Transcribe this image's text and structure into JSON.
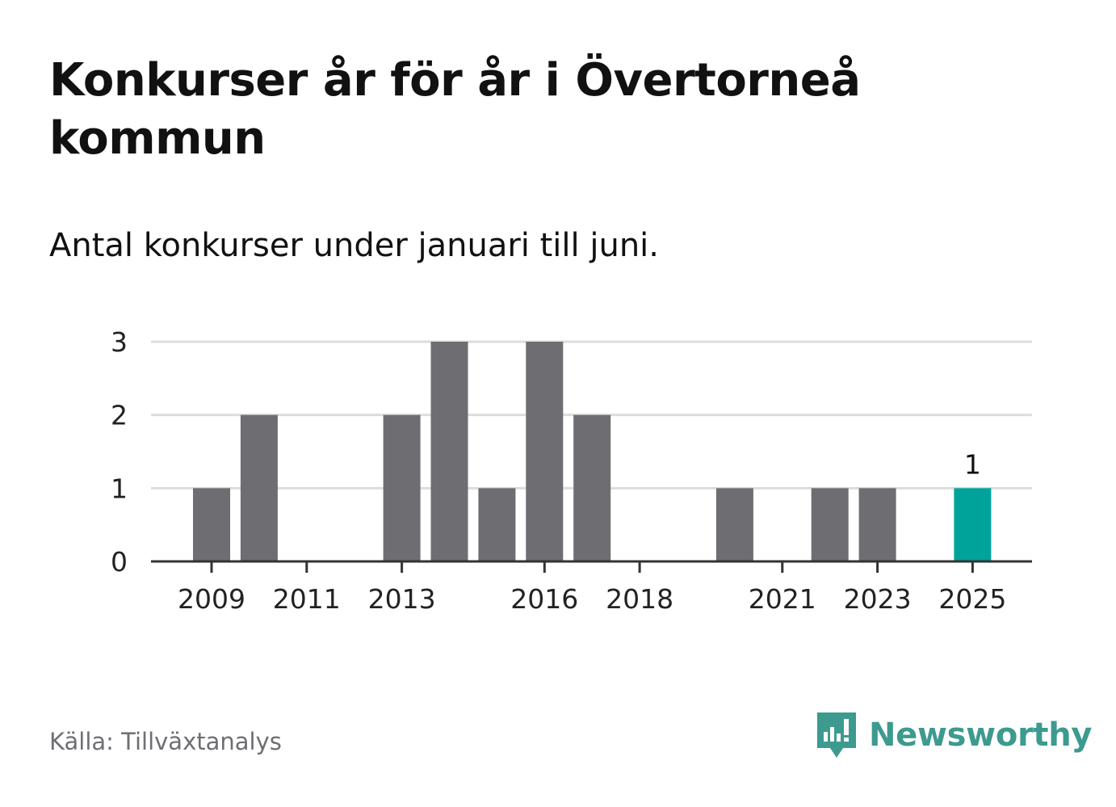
{
  "title": "Konkurser år för år i Övertorneå kommun",
  "subtitle": "Antal konkurser under januari till juni.",
  "source": "Källa: Tillväxtanalys",
  "brand": {
    "name": "Newsworthy",
    "icon": "newsworthy-logo-icon",
    "color": "#3d9a8f"
  },
  "colors": {
    "bar": "#6e6d72",
    "highlight": "#00a39a",
    "grid": "#dcdcdc",
    "axis": "#333333",
    "tick_text": "#222222"
  },
  "chart_data": {
    "type": "bar",
    "categories": [
      "2009",
      "2010",
      "2011",
      "2012",
      "2013",
      "2014",
      "2015",
      "2016",
      "2017",
      "2018",
      "2019",
      "2020",
      "2021",
      "2022",
      "2023",
      "2024",
      "2025"
    ],
    "values": [
      1,
      2,
      0,
      0,
      2,
      3,
      1,
      3,
      2,
      0,
      0,
      1,
      0,
      1,
      1,
      0,
      1
    ],
    "x_tick_labels": [
      "2009",
      "2011",
      "2013",
      "2016",
      "2018",
      "2021",
      "2023",
      "2025"
    ],
    "y_ticks": [
      0,
      1,
      2,
      3
    ],
    "ylim": [
      0,
      3
    ],
    "highlight_category": "2025",
    "data_labels": [
      {
        "category": "2025",
        "text": "1"
      }
    ],
    "grid": true,
    "legend": "none",
    "xlabel": "",
    "ylabel": ""
  }
}
